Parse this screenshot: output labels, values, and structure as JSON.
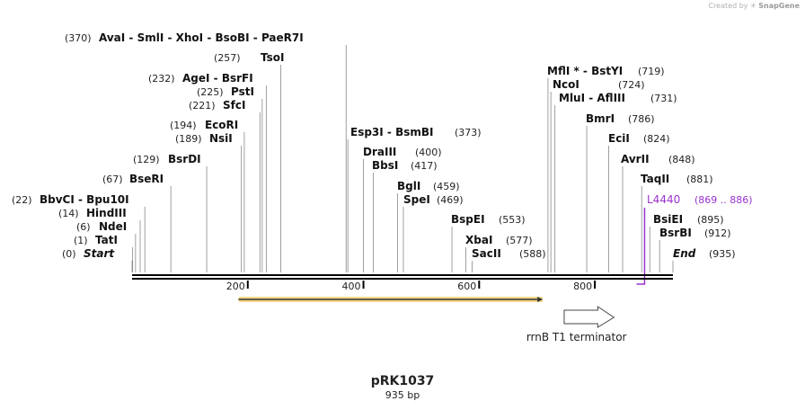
{
  "credit": {
    "prefix": "Created by",
    "brand": "SnapGene"
  },
  "map": {
    "name": "pRK1037",
    "length_label": "935 bp",
    "sequence_length": 935,
    "ticks": [
      200,
      400,
      600,
      800
    ]
  },
  "sites": [
    {
      "name": "AvaI  - SmlI  - XhoI  - BsoBI  - PaeR7I",
      "pos": 370,
      "pos_label": "(370)",
      "label_side": "left"
    },
    {
      "name": "TsoI",
      "pos": 257,
      "pos_label": "(257)",
      "label_side": "left"
    },
    {
      "name": "AgeI  - BsrFI",
      "pos": 232,
      "pos_label": "(232)",
      "label_side": "left"
    },
    {
      "name": "PstI",
      "pos": 225,
      "pos_label": "(225)",
      "label_side": "left"
    },
    {
      "name": "SfcI",
      "pos": 221,
      "pos_label": "(221)",
      "label_side": "left"
    },
    {
      "name": "EcoRI",
      "pos": 194,
      "pos_label": "(194)",
      "label_side": "left"
    },
    {
      "name": "NsiI",
      "pos": 189,
      "pos_label": "(189)",
      "label_side": "left"
    },
    {
      "name": "BsrDI",
      "pos": 129,
      "pos_label": "(129)",
      "label_side": "left"
    },
    {
      "name": "BseRI",
      "pos": 67,
      "pos_label": "(67)",
      "label_side": "left"
    },
    {
      "name": "BbvCI  - Bpu10I",
      "pos": 22,
      "pos_label": "(22)",
      "label_side": "left"
    },
    {
      "name": "HindIII",
      "pos": 14,
      "pos_label": "(14)",
      "label_side": "left"
    },
    {
      "name": "NdeI",
      "pos": 6,
      "pos_label": "(6)",
      "label_side": "left"
    },
    {
      "name": "TatI",
      "pos": 1,
      "pos_label": "(1)",
      "label_side": "left"
    },
    {
      "name": "Start",
      "pos": 0,
      "pos_label": "(0)",
      "label_side": "left",
      "italic": true
    },
    {
      "name": "Esp3I  - BsmBI",
      "pos": 373,
      "pos_label": "(373)",
      "label_side": "right"
    },
    {
      "name": "DraIII",
      "pos": 400,
      "pos_label": "(400)",
      "label_side": "right"
    },
    {
      "name": "BbsI",
      "pos": 417,
      "pos_label": "(417)",
      "label_side": "right"
    },
    {
      "name": "BglI",
      "pos": 459,
      "pos_label": "(459)",
      "label_side": "right"
    },
    {
      "name": "SpeI",
      "pos": 469,
      "pos_label": "(469)",
      "label_side": "right"
    },
    {
      "name": "BspEI",
      "pos": 553,
      "pos_label": "(553)",
      "label_side": "right"
    },
    {
      "name": "XbaI",
      "pos": 577,
      "pos_label": "(577)",
      "label_side": "right"
    },
    {
      "name": "SacII",
      "pos": 588,
      "pos_label": "(588)",
      "label_side": "right"
    },
    {
      "name": "MflI *  - BstYI",
      "pos": 719,
      "pos_label": "(719)",
      "label_side": "right"
    },
    {
      "name": "NcoI",
      "pos": 724,
      "pos_label": "(724)",
      "label_side": "right"
    },
    {
      "name": "MluI  - AflIII",
      "pos": 731,
      "pos_label": "(731)",
      "label_side": "right"
    },
    {
      "name": "BmrI",
      "pos": 786,
      "pos_label": "(786)",
      "label_side": "right"
    },
    {
      "name": "EciI",
      "pos": 824,
      "pos_label": "(824)",
      "label_side": "right"
    },
    {
      "name": "AvrII",
      "pos": 848,
      "pos_label": "(848)",
      "label_side": "right"
    },
    {
      "name": "TaqII",
      "pos": 881,
      "pos_label": "(881)",
      "label_side": "right"
    },
    {
      "name": "BsiEI",
      "pos": 895,
      "pos_label": "(895)",
      "label_side": "right"
    },
    {
      "name": "BsrBI",
      "pos": 912,
      "pos_label": "(912)",
      "label_side": "right"
    },
    {
      "name": "End",
      "pos": 935,
      "pos_label": "(935)",
      "label_side": "right",
      "italic": true
    }
  ],
  "primer": {
    "name": "L4440",
    "range_label": "(869 .. 886)",
    "start": 869,
    "end": 886,
    "color": "#9933cc"
  },
  "features": [
    {
      "name": "orange-feature",
      "start": 184,
      "end": 710,
      "color": "#f0b429",
      "label": ""
    },
    {
      "name": "rrnB T1 terminator",
      "start": 747,
      "end": 833,
      "label": "rrnB T1 terminator",
      "color": "#ffffff"
    }
  ]
}
